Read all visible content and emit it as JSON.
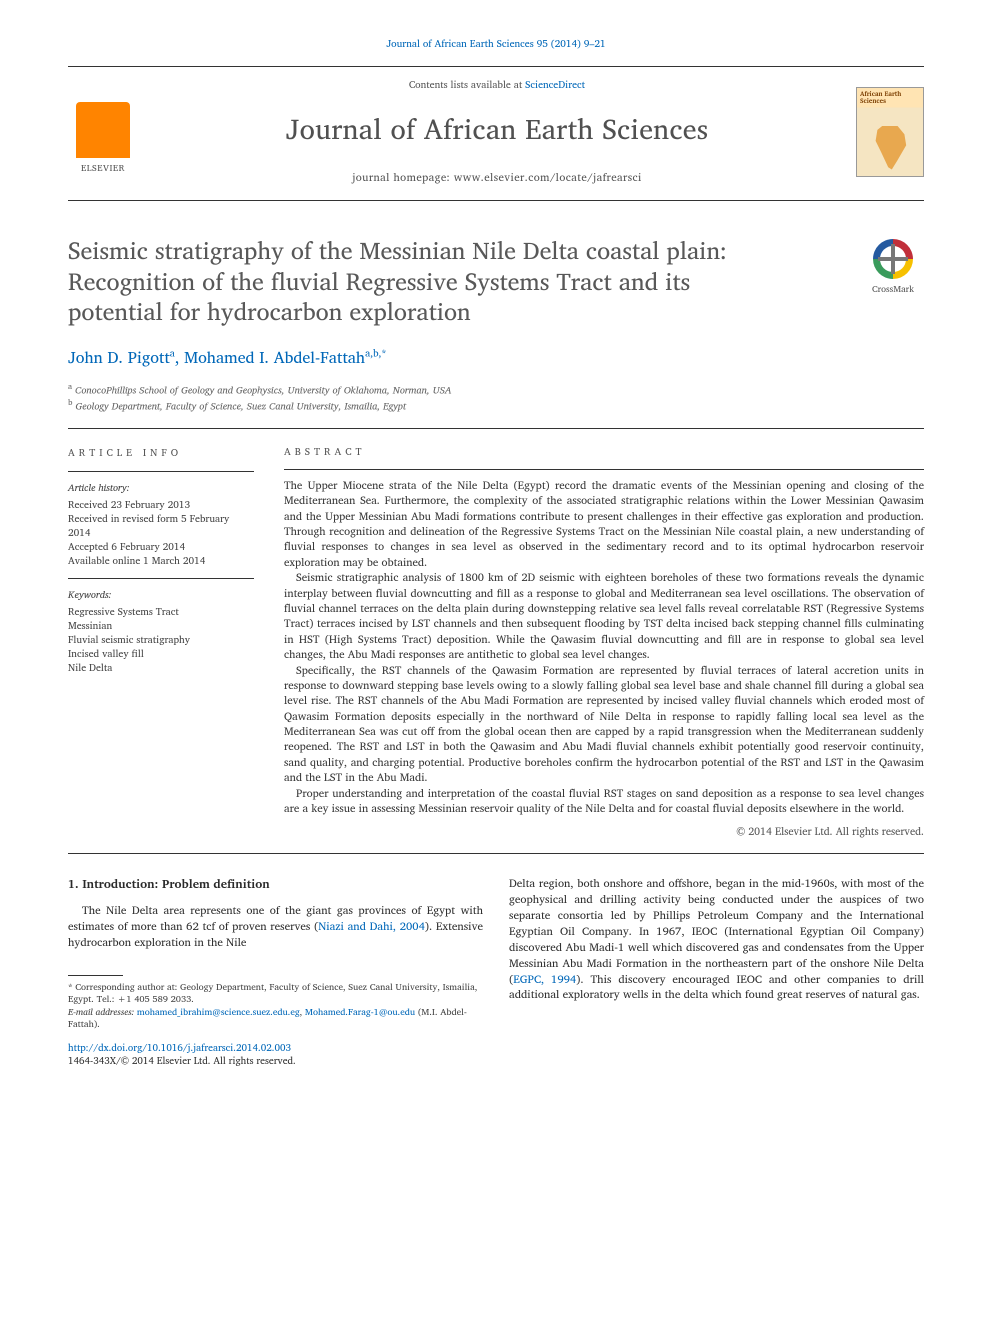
{
  "citation": "Journal of African Earth Sciences 95 (2014) 9–21",
  "header": {
    "contents_prefix": "Contents lists available at ",
    "contents_link": "ScienceDirect",
    "journal_name": "Journal of African Earth Sciences",
    "homepage_label": "journal homepage: ",
    "homepage_url": "www.elsevier.com/locate/jafrearsci",
    "publisher_label": "ELSEVIER",
    "cover_title": "African Earth Sciences"
  },
  "crossmark_label": "CrossMark",
  "title": "Seismic stratigraphy of the Messinian Nile Delta coastal plain: Recognition of the fluvial Regressive Systems Tract and its potential for hydrocarbon exploration",
  "authors": {
    "a1_name": "John D. Pigott",
    "a1_aff": "a",
    "a2_name": "Mohamed I. Abdel-Fattah",
    "a2_aff": "a,b,",
    "a2_corr": "*"
  },
  "affiliations": {
    "a": "ConocoPhillips School of Geology and Geophysics, University of Oklahoma, Norman, USA",
    "b": "Geology Department, Faculty of Science, Suez Canal University, Ismailia, Egypt"
  },
  "info": {
    "heading": "ARTICLE INFO",
    "history_label": "Article history:",
    "h1": "Received 23 February 2013",
    "h2": "Received in revised form 5 February 2014",
    "h3": "Accepted 6 February 2014",
    "h4": "Available online 1 March 2014",
    "keywords_label": "Keywords:",
    "k1": "Regressive Systems Tract",
    "k2": "Messinian",
    "k3": "Fluvial seismic stratigraphy",
    "k4": "Incised valley fill",
    "k5": "Nile Delta"
  },
  "abstract": {
    "heading": "ABSTRACT",
    "p1": "The Upper Miocene strata of the Nile Delta (Egypt) record the dramatic events of the Messinian opening and closing of the Mediterranean Sea. Furthermore, the complexity of the associated stratigraphic relations within the Lower Messinian Qawasim and the Upper Messinian Abu Madi formations contribute to present challenges in their effective gas exploration and production. Through recognition and delineation of the Regressive Systems Tract on the Messinian Nile coastal plain, a new understanding of fluvial responses to changes in sea level as observed in the sedimentary record and to its optimal hydrocarbon reservoir exploration may be obtained.",
    "p2": "Seismic stratigraphic analysis of 1800 km of 2D seismic with eighteen boreholes of these two formations reveals the dynamic interplay between fluvial downcutting and fill as a response to global and Mediterranean sea level oscillations. The observation of fluvial channel terraces on the delta plain during downstepping relative sea level falls reveal correlatable RST (Regressive Systems Tract) terraces incised by LST channels and then subsequent flooding by TST delta incised back stepping channel fills culminating in HST (High Systems Tract) deposition. While the Qawasim fluvial downcutting and fill are in response to global sea level changes, the Abu Madi responses are antithetic to global sea level changes.",
    "p3": "Specifically, the RST channels of the Qawasim Formation are represented by fluvial terraces of lateral accretion units in response to downward stepping base levels owing to a slowly falling global sea level base and shale channel fill during a global sea level rise. The RST channels of the Abu Madi Formation are represented by incised valley fluvial channels which eroded most of Qawasim Formation deposits especially in the northward of Nile Delta in response to rapidly falling local sea level as the Mediterranean Sea was cut off from the global ocean then are capped by a rapid transgression when the Mediterranean suddenly reopened. The RST and LST in both the Qawasim and Abu Madi fluvial channels exhibit potentially good reservoir continuity, sand quality, and charging potential. Productive boreholes confirm the hydrocarbon potential of the RST and LST in the Qawasim and the LST in the Abu Madi.",
    "p4": "Proper understanding and interpretation of the coastal fluvial RST stages on sand deposition as a response to sea level changes are a key issue in assessing Messinian reservoir quality of the Nile Delta and for coastal fluvial deposits elsewhere in the world.",
    "copyright": "© 2014 Elsevier Ltd. All rights reserved."
  },
  "body": {
    "section_heading": "1. Introduction: Problem definition",
    "col1_p1a": "The Nile Delta area represents one of the giant gas provinces of Egypt with estimates of more than 62 tcf of proven reserves (",
    "col1_ref1": "Niazi and Dahi, 2004",
    "col1_p1b": "). Extensive hydrocarbon exploration in the Nile",
    "col2_p1a": "Delta region, both onshore and offshore, began in the mid-1960s, with most of the geophysical and drilling activity being conducted under the auspices of two separate consortia led by Phillips Petroleum Company and the International Egyptian Oil Company. In 1967, IEOC (International Egyptian Oil Company) discovered Abu Madi-1 well which discovered gas and condensates from the Upper Messinian Abu Madi Formation in the northeastern part of the onshore Nile Delta (",
    "col2_ref1": "EGPC, 1994",
    "col2_p1b": "). This discovery encouraged IEOC and other companies to drill additional exploratory wells in the delta which found great reserves of natural gas."
  },
  "footnotes": {
    "corr": "* Corresponding author at: Geology Department, Faculty of Science, Suez Canal University, Ismailia, Egypt. Tel.: +1 405 589 2033.",
    "email_label": "E-mail addresses:",
    "email1": "mohamed_ibrahim@science.suez.edu.eg",
    "email_sep": ", ",
    "email2": "Mohamed.Farag-1@ou.edu",
    "email_tail": " (M.I. Abdel-Fattah).",
    "doi_url": "http://dx.doi.org/10.1016/j.jafrearsci.2014.02.003",
    "issn_line": "1464-343X/© 2014 Elsevier Ltd. All rights reserved."
  }
}
